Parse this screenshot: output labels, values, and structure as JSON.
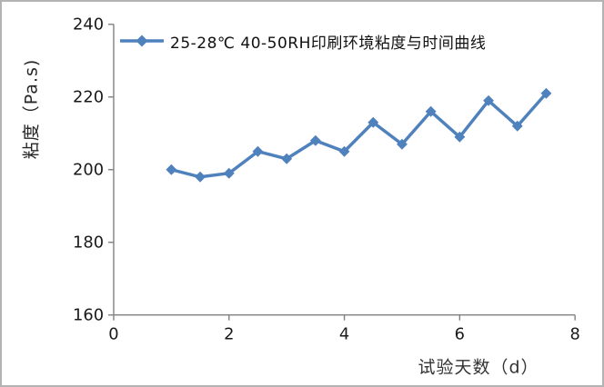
{
  "chart_data": {
    "type": "line",
    "legend": "25-28℃ 40-50RH印刷环境粘度与时间曲线",
    "xlabel": "试验天数（d）",
    "ylabel": "粘度（Pa.s)",
    "x": [
      1,
      1.5,
      2,
      2.5,
      3,
      3.5,
      4,
      4.5,
      5,
      5.5,
      6,
      6.5,
      7,
      7.5
    ],
    "series": [
      {
        "name": "25-28℃ 40-50RH印刷环境粘度与时间曲线",
        "values": [
          200,
          198,
          199,
          205,
          203,
          208,
          205,
          213,
          207,
          216,
          209,
          219,
          212,
          221
        ]
      }
    ],
    "xlim": [
      0,
      8
    ],
    "ylim": [
      160,
      240
    ],
    "x_ticks": [
      "0",
      "2",
      "4",
      "6",
      "8"
    ],
    "y_ticks": [
      "240",
      "220",
      "200",
      "180",
      "160"
    ],
    "grid": "off",
    "legend_position": "top",
    "marker": "diamond",
    "line_color": "#4f81bd",
    "axis_color": "#808080",
    "tick_label_color": "#1a1a1a"
  }
}
